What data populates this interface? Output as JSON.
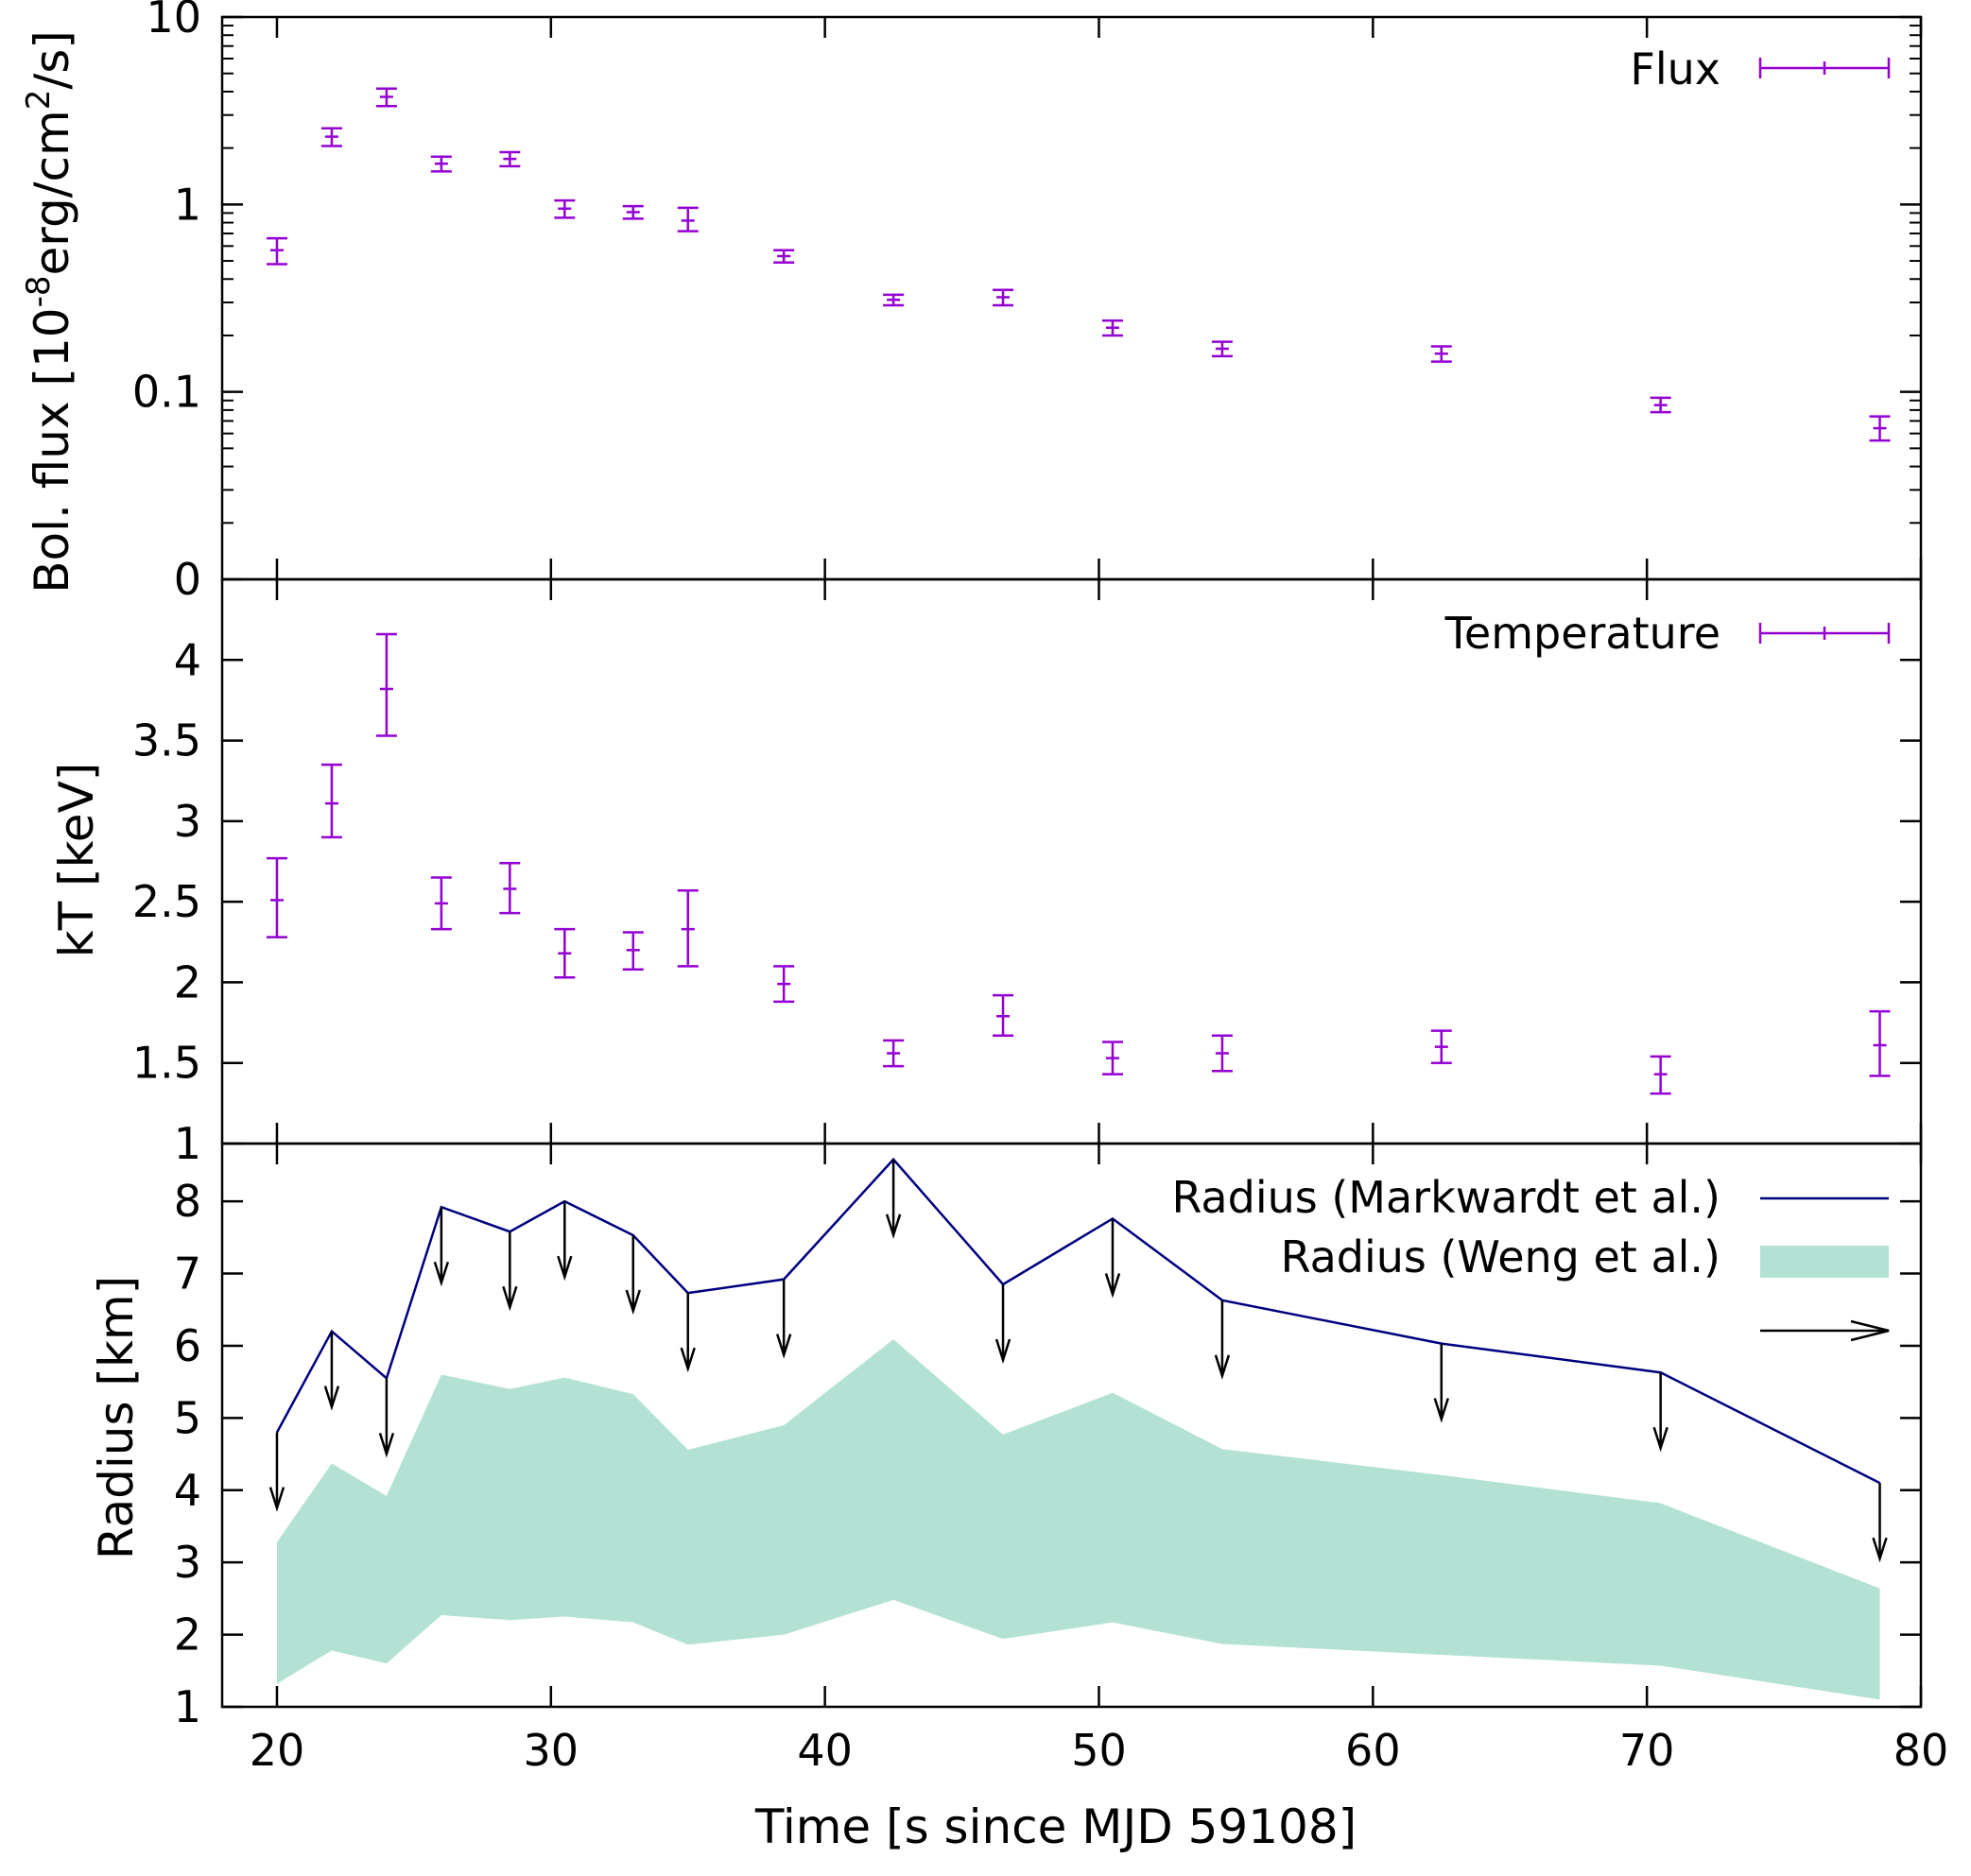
{
  "x_axis": {
    "label": "Time [s since MJD 59108]",
    "ticks": [
      20,
      30,
      40,
      50,
      60,
      70,
      80
    ],
    "range": [
      18,
      80
    ]
  },
  "colors": {
    "purple": "#9400d3",
    "navy": "#000080",
    "fill": "#b3e2d4",
    "black": "#000000"
  },
  "chart_data": [
    {
      "type": "scatter",
      "title": "",
      "ylabel_main": "Bol. flux [10",
      "ylabel_sup1": "-8",
      "ylabel_mid": "erg/cm",
      "ylabel_sup2": "2",
      "ylabel_end": "/s]",
      "yscale": "log",
      "ylim": [
        0.01,
        10
      ],
      "ytick_values": [
        0.01,
        0.1,
        1,
        10
      ],
      "ytick_labels": [
        "0",
        "0.1",
        "1",
        "10"
      ],
      "legend": "Flux",
      "x": [
        20.0,
        22.0,
        24.0,
        26.0,
        28.5,
        30.5,
        33.0,
        35.0,
        38.5,
        42.5,
        46.5,
        50.5,
        54.5,
        62.5,
        70.5,
        78.5
      ],
      "y": [
        0.57,
        2.3,
        3.75,
        1.65,
        1.75,
        0.95,
        0.91,
        0.82,
        0.53,
        0.31,
        0.32,
        0.22,
        0.17,
        0.16,
        0.085,
        0.064
      ],
      "y_lo": [
        0.48,
        2.05,
        3.35,
        1.5,
        1.6,
        0.85,
        0.84,
        0.72,
        0.49,
        0.29,
        0.29,
        0.2,
        0.155,
        0.145,
        0.078,
        0.055
      ],
      "y_hi": [
        0.66,
        2.55,
        4.15,
        1.8,
        1.9,
        1.05,
        0.98,
        0.96,
        0.57,
        0.33,
        0.35,
        0.24,
        0.185,
        0.175,
        0.093,
        0.074
      ]
    },
    {
      "type": "scatter",
      "ylabel": "kT [keV]",
      "ylim": [
        1,
        4.5
      ],
      "ytick_values": [
        1,
        1.5,
        2,
        2.5,
        3,
        3.5,
        4
      ],
      "ytick_labels": [
        "1",
        "1.5",
        "2",
        "2.5",
        "3",
        "3.5",
        "4"
      ],
      "legend": "Temperature",
      "x": [
        20.0,
        22.0,
        24.0,
        26.0,
        28.5,
        30.5,
        33.0,
        35.0,
        38.5,
        42.5,
        46.5,
        50.5,
        54.5,
        62.5,
        70.5,
        78.5
      ],
      "y": [
        2.51,
        3.11,
        3.82,
        2.49,
        2.58,
        2.18,
        2.2,
        2.33,
        1.99,
        1.56,
        1.79,
        1.53,
        1.56,
        1.6,
        1.43,
        1.61
      ],
      "y_lo": [
        2.28,
        2.9,
        3.53,
        2.33,
        2.43,
        2.03,
        2.08,
        2.1,
        1.88,
        1.48,
        1.67,
        1.43,
        1.45,
        1.5,
        1.31,
        1.42
      ],
      "y_hi": [
        2.77,
        3.35,
        4.16,
        2.65,
        2.74,
        2.33,
        2.31,
        2.57,
        2.1,
        1.64,
        1.92,
        1.63,
        1.67,
        1.7,
        1.54,
        1.82
      ]
    },
    {
      "type": "line",
      "ylabel": "Radius [km]",
      "ylim": [
        1,
        8.8
      ],
      "ytick_values": [
        1,
        2,
        3,
        4,
        5,
        6,
        7,
        8
      ],
      "ytick_labels": [
        "1",
        "2",
        "3",
        "4",
        "5",
        "6",
        "7",
        "8"
      ],
      "series": [
        {
          "name": "Radius (Markwardt et al.)",
          "legend": "Radius (Markwardt et al.)",
          "x": [
            20.0,
            22.0,
            24.0,
            26.0,
            28.5,
            30.5,
            33.0,
            35.0,
            38.5,
            42.5,
            46.5,
            50.5,
            54.5,
            62.5,
            70.5,
            78.5
          ],
          "values": [
            4.8,
            6.2,
            5.55,
            7.92,
            7.58,
            8.0,
            7.53,
            6.73,
            6.92,
            8.58,
            6.85,
            7.76,
            6.63,
            6.03,
            5.63,
            4.1
          ]
        },
        {
          "name": "Radius (Weng et al.)",
          "legend": "Radius  (Weng et al.)",
          "x": [
            20.0,
            22.0,
            24.0,
            26.0,
            28.5,
            30.5,
            33.0,
            35.0,
            38.5,
            42.5,
            46.5,
            50.5,
            54.5,
            62.5,
            70.5,
            78.5
          ],
          "lower": [
            1.32,
            1.78,
            1.6,
            2.27,
            2.2,
            2.25,
            2.17,
            1.86,
            2.0,
            2.48,
            1.94,
            2.17,
            1.87,
            1.72,
            1.57,
            1.1
          ],
          "upper": [
            3.28,
            4.37,
            3.92,
            5.6,
            5.4,
            5.56,
            5.33,
            4.56,
            4.9,
            6.09,
            4.77,
            5.35,
            4.57,
            4.21,
            3.82,
            2.64
          ]
        }
      ],
      "upper_limit_legend": ""
    }
  ]
}
